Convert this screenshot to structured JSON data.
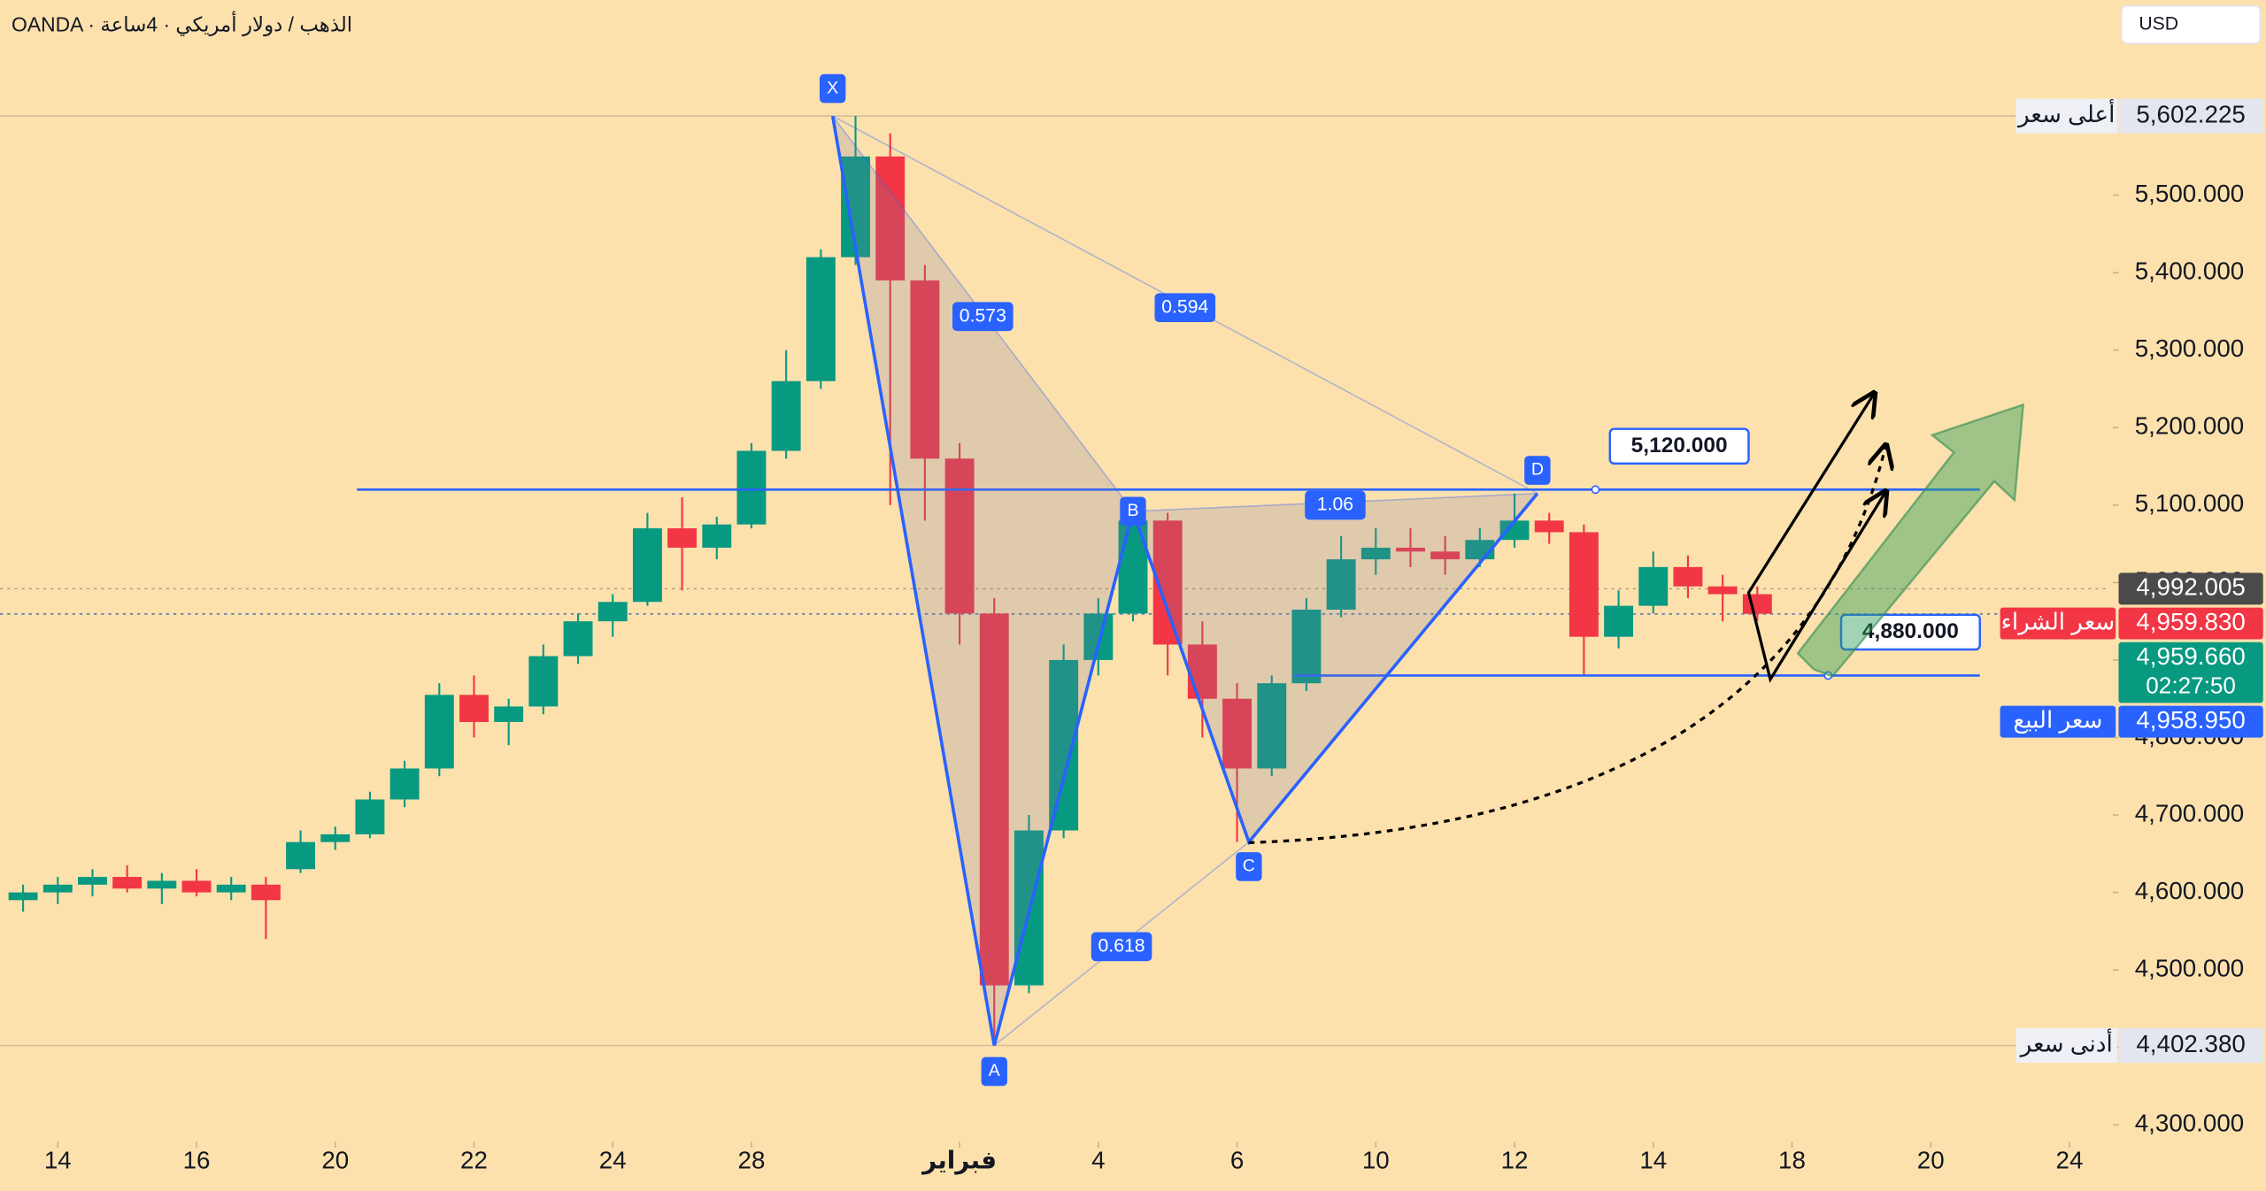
{
  "chart_data": {
    "type": "candlestick",
    "title": "OANDA · الذهب / دولار أمريكي · 4ساعة",
    "currency": "USD",
    "up_color": "#089981",
    "down_color": "#f23645",
    "x": [
      -0.5,
      0,
      0.5,
      1,
      1.5,
      2,
      2.5,
      3,
      3.5,
      4,
      4.5,
      5,
      5.5,
      6,
      6.5,
      7,
      7.5,
      8,
      8.5,
      9,
      9.5,
      10,
      10.5,
      11,
      11.5,
      12,
      12.5,
      13,
      13.5,
      14,
      14.5,
      15,
      15.5,
      16,
      16.5,
      17,
      17.5,
      18,
      18.5,
      19,
      19.5,
      20,
      20.5,
      21,
      21.5,
      22,
      22.5,
      23,
      23.5,
      24,
      24.5
    ],
    "open": [
      4590,
      4600,
      4610,
      4620,
      4605,
      4615,
      4600,
      4610,
      4630,
      4665,
      4675,
      4720,
      4760,
      4855,
      4820,
      4840,
      4905,
      4950,
      4975,
      5070,
      5045,
      5075,
      5170,
      5260,
      5420,
      5550,
      5390,
      5160,
      4960,
      4480,
      4680,
      4900,
      4960,
      5080,
      4920,
      4850,
      4760,
      4870,
      4965,
      5030,
      5045,
      5040,
      5030,
      5055,
      5080,
      5065,
      4930,
      4970,
      5020,
      4995,
      4985
    ],
    "high": [
      4610,
      4620,
      4630,
      4635,
      4625,
      4630,
      4620,
      4620,
      4680,
      4685,
      4730,
      4770,
      4870,
      4880,
      4850,
      4920,
      4960,
      4985,
      5090,
      5110,
      5085,
      5180,
      5300,
      5430,
      5602.225,
      5580,
      5410,
      5180,
      4980,
      4700,
      4920,
      4980,
      5092,
      5090,
      4950,
      4870,
      4880,
      4980,
      5060,
      5070,
      5070,
      5060,
      5070,
      5115,
      5090,
      5075,
      4990,
      5040,
      5035,
      5010,
      4995
    ],
    "low": [
      4575,
      4585,
      4595,
      4600,
      4585,
      4595,
      4590,
      4540,
      4625,
      4655,
      4670,
      4710,
      4750,
      4800,
      4790,
      4830,
      4895,
      4930,
      4970,
      4990,
      5030,
      5070,
      5160,
      5250,
      5410,
      5100,
      5080,
      4920,
      4402.38,
      4470,
      4670,
      4880,
      4950,
      4880,
      4800,
      4665,
      4750,
      4860,
      4955,
      5010,
      5020,
      5010,
      5020,
      5045,
      5050,
      4880,
      4915,
      4960,
      4980,
      4950,
      4950
    ],
    "close": [
      4600,
      4610,
      4620,
      4605,
      4615,
      4600,
      4610,
      4590,
      4665,
      4675,
      4720,
      4760,
      4855,
      4820,
      4840,
      4905,
      4950,
      4975,
      5070,
      5045,
      5075,
      5170,
      5260,
      5420,
      5550,
      5390,
      5160,
      4960,
      4480,
      4680,
      4900,
      4960,
      5080,
      4920,
      4850,
      4760,
      4870,
      4965,
      5030,
      5045,
      5040,
      5030,
      5055,
      5080,
      5065,
      4930,
      4970,
      5020,
      4995,
      4985,
      4959.66
    ],
    "xlim": [
      -0.833,
      29.583
    ],
    "ylim": [
      4278,
      5752
    ],
    "xticks": [
      {
        "value": 0,
        "label": "14"
      },
      {
        "value": 2,
        "label": "16"
      },
      {
        "value": 4,
        "label": "20"
      },
      {
        "value": 6,
        "label": "22"
      },
      {
        "value": 8,
        "label": "24"
      },
      {
        "value": 10,
        "label": "28"
      },
      {
        "value": 13,
        "label": "فبراير"
      },
      {
        "value": 15,
        "label": "4"
      },
      {
        "value": 17,
        "label": "6"
      },
      {
        "value": 19,
        "label": "10"
      },
      {
        "value": 21,
        "label": "12"
      },
      {
        "value": 23,
        "label": "14"
      },
      {
        "value": 25,
        "label": "18"
      },
      {
        "value": 27,
        "label": "20"
      },
      {
        "value": 29,
        "label": "24"
      }
    ],
    "yticks": [
      {
        "value": 4300,
        "label": "4,300.000"
      },
      {
        "value": 4400,
        "label": "4,400.000"
      },
      {
        "value": 4500,
        "label": "4,500.000"
      },
      {
        "value": 4600,
        "label": "4,600.000"
      },
      {
        "value": 4700,
        "label": "4,700.000"
      },
      {
        "value": 4800,
        "label": "4,800.000"
      },
      {
        "value": 4900,
        "label": "4,900.000"
      },
      {
        "value": 5000,
        "label": "5,000.000"
      },
      {
        "value": 5100,
        "label": "5,100.000"
      },
      {
        "value": 5200,
        "label": "5,200.000"
      },
      {
        "value": 5300,
        "label": "5,300.000"
      },
      {
        "value": 5400,
        "label": "5,400.000"
      },
      {
        "value": 5500,
        "label": "5,500.000"
      }
    ],
    "grid": false,
    "pattern": {
      "color": "#2962ff",
      "points": [
        {
          "label": "X",
          "x": 11.17,
          "y": 5602.225
        },
        {
          "label": "A",
          "x": 13.5,
          "y": 4402.38
        },
        {
          "label": "B",
          "x": 15.5,
          "y": 5092
        },
        {
          "label": "C",
          "x": 17.17,
          "y": 4665
        },
        {
          "label": "D",
          "x": 21.33,
          "y": 5115
        }
      ],
      "ratios": [
        0.573,
        0.594,
        1.06,
        0.618
      ]
    },
    "levels": [
      {
        "value": 5120,
        "label": "5,120.000"
      },
      {
        "value": 4880,
        "label": "4,880.000"
      }
    ],
    "extremes": [
      {
        "name": "أعلى سعر",
        "value": 5602.225,
        "label": "5,602.225"
      },
      {
        "name": "أدنى سعر",
        "value": 4402.38,
        "label": "4,402.380"
      }
    ],
    "quotes": [
      {
        "value": 4992.005,
        "label": "4,992.005",
        "color": "#4a4a4a"
      },
      {
        "name": "سعر الشراء",
        "value": 4959.83,
        "label": "4,959.830",
        "color": "#f23645"
      },
      {
        "value": 4959.66,
        "label": "4,959.660",
        "countdown": "02:27:50",
        "color": "#089981"
      },
      {
        "name": "سعر البيع",
        "value": 4958.95,
        "label": "4,958.950",
        "color": "#2962ff"
      }
    ]
  }
}
